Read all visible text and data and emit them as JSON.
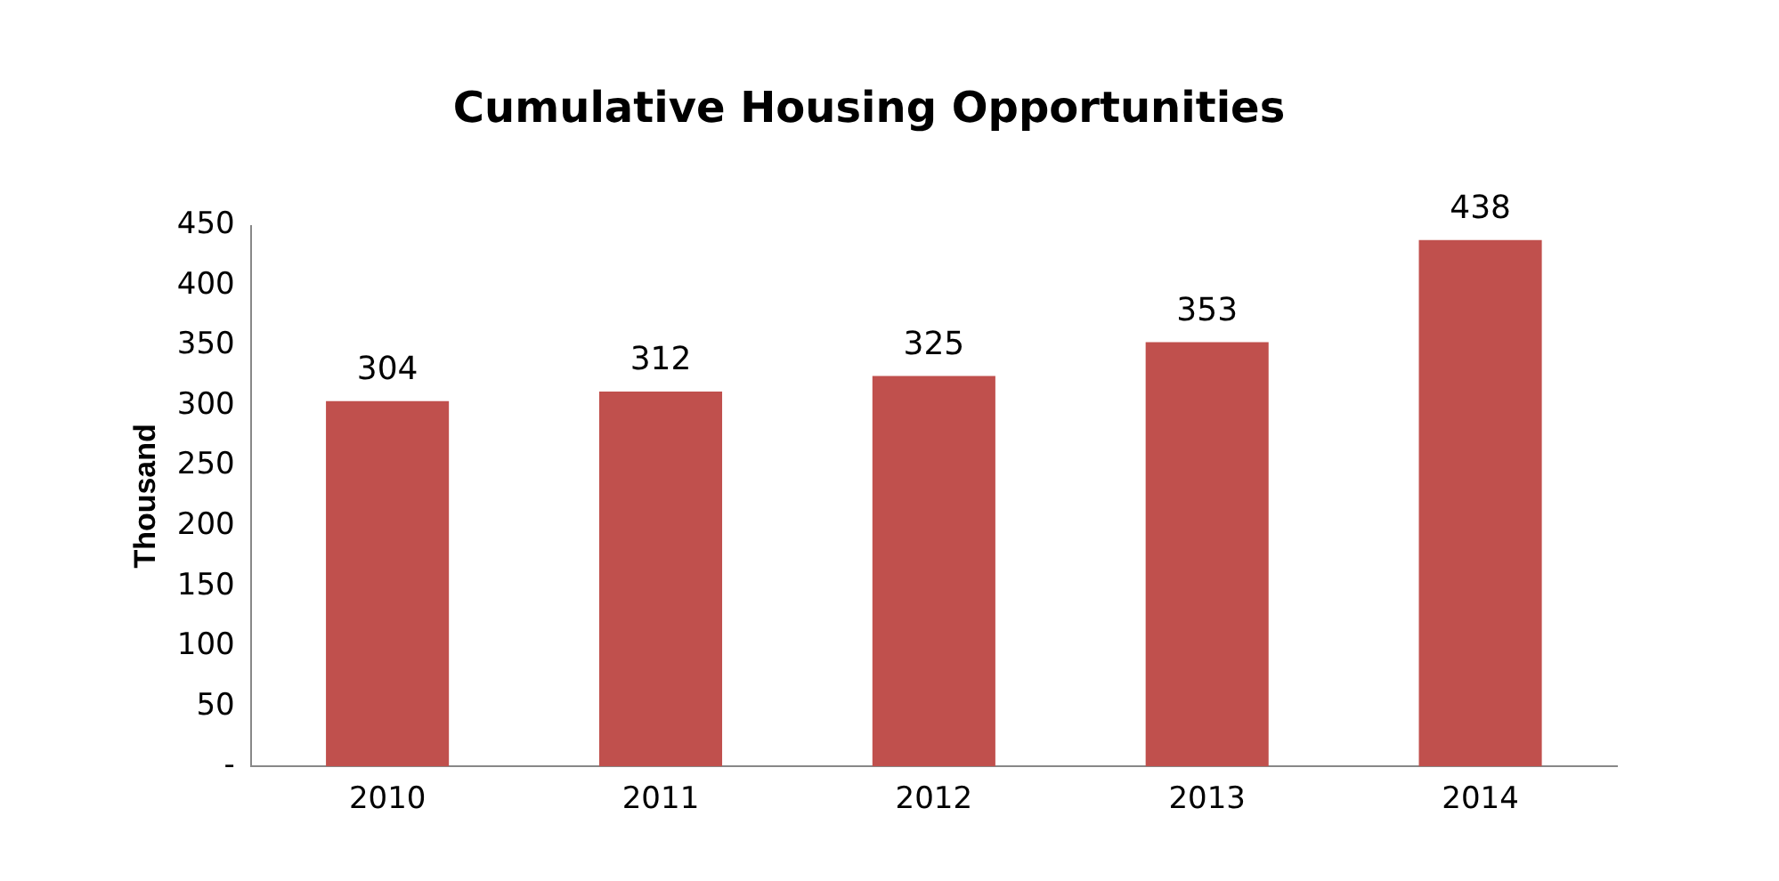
{
  "chart_data": {
    "type": "bar",
    "title": "Cumulative Housing Opportunities",
    "ylabel": "Thousand",
    "categories": [
      "2010",
      "2011",
      "2012",
      "2013",
      "2014"
    ],
    "values": [
      304,
      312,
      325,
      353,
      438
    ],
    "color": "#c0504d",
    "ylim": [
      0,
      450
    ],
    "yticks": [
      {
        "value": 0,
        "label": "-"
      },
      50,
      100,
      150,
      200,
      250,
      300,
      350,
      400,
      450
    ],
    "grid": false,
    "data_labels": true,
    "legend": false
  }
}
